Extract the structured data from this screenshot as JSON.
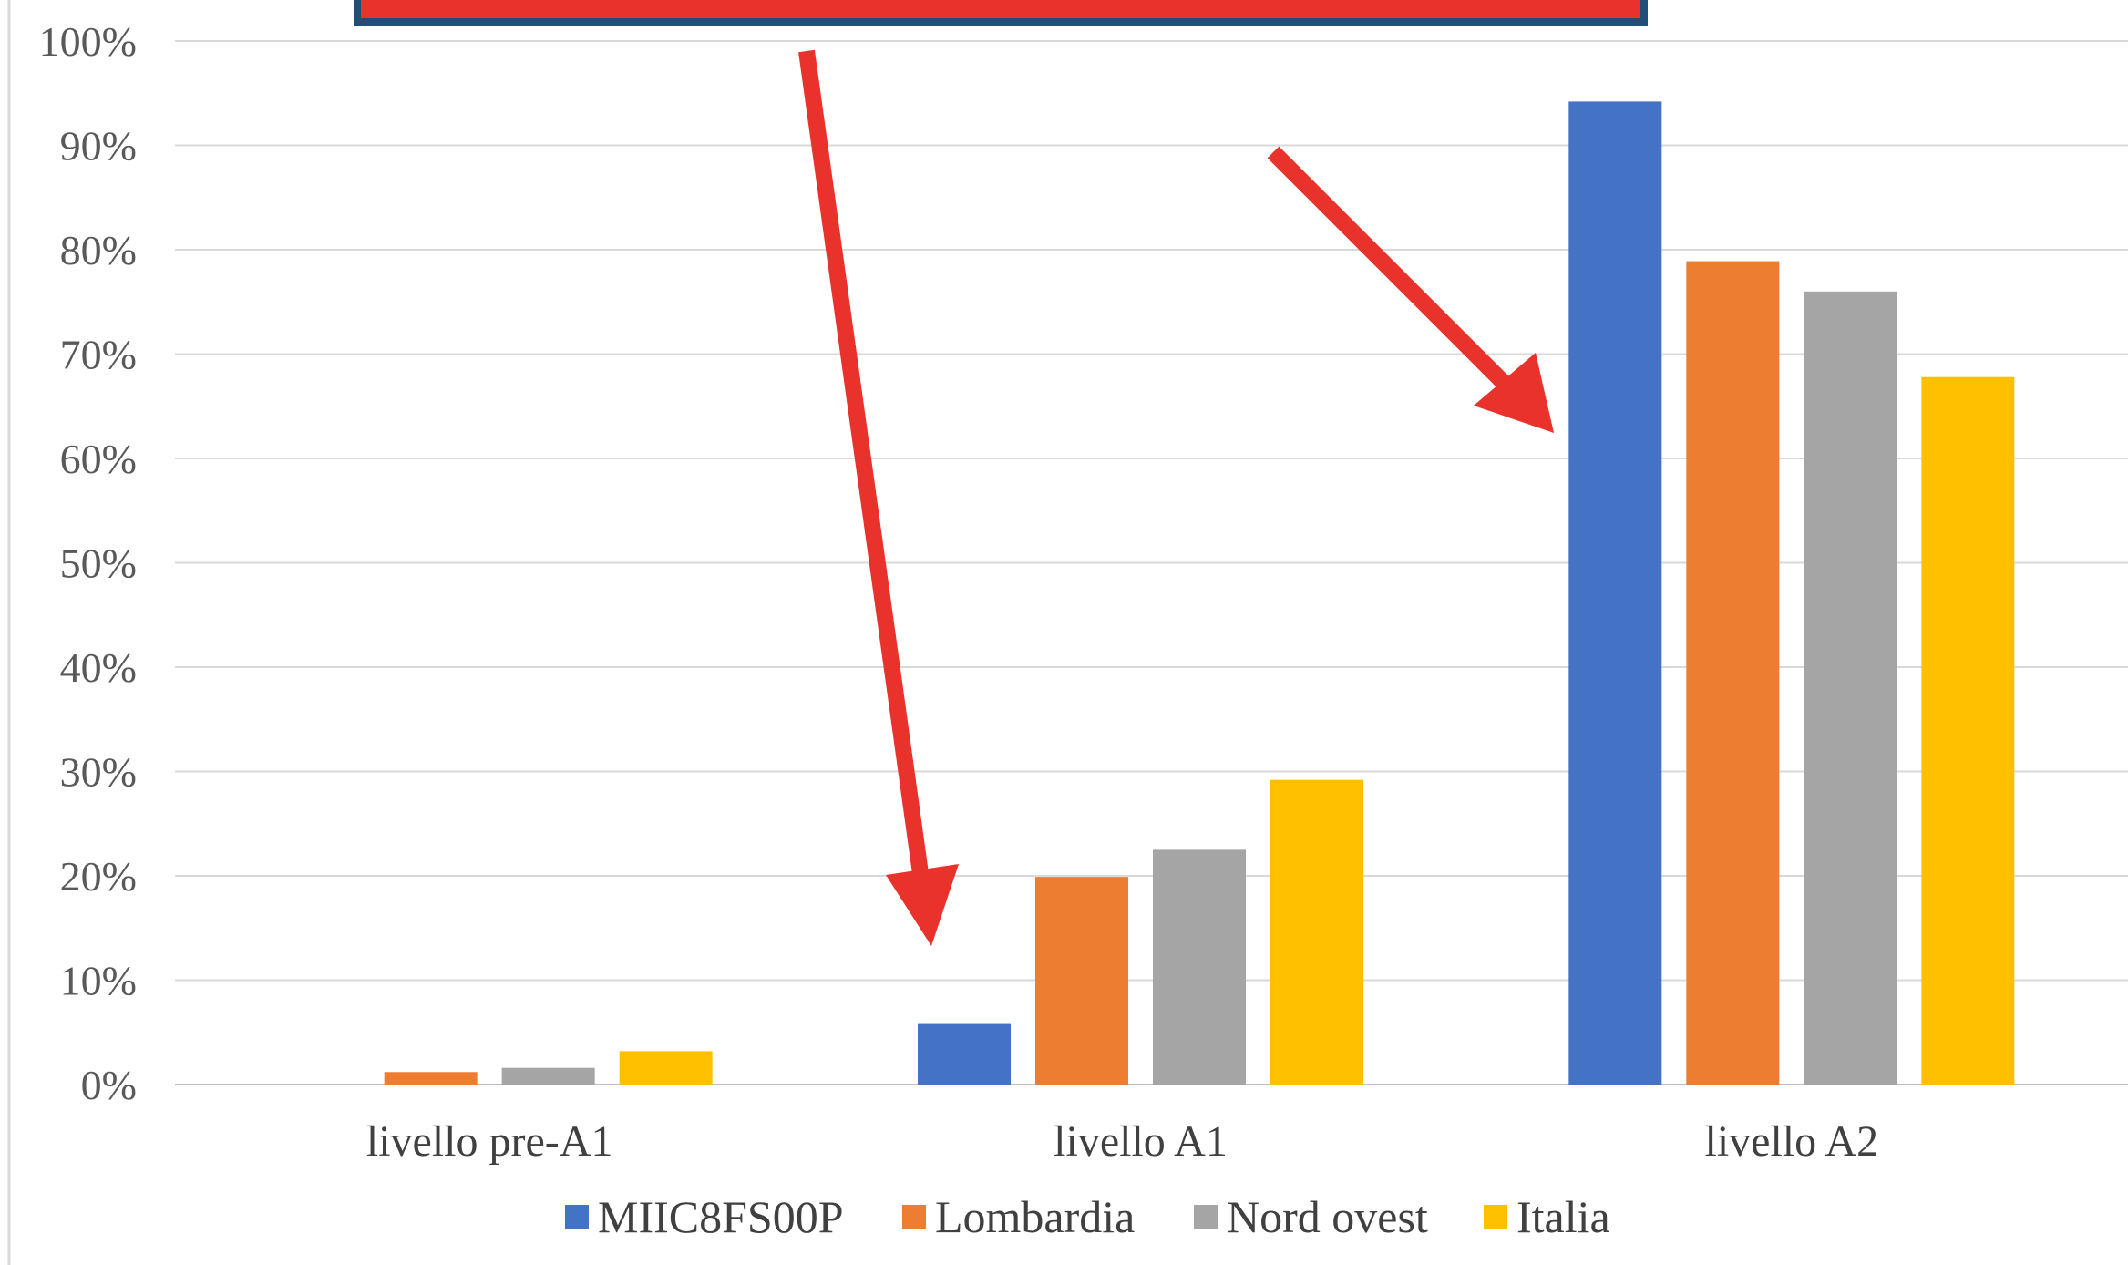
{
  "chart_data": {
    "type": "bar",
    "categories": [
      "livello pre-A1",
      "livello A1",
      "livello A2"
    ],
    "series": [
      {
        "name": "MIIC8FS00P",
        "color": "#4472C4",
        "values": [
          0,
          5.8,
          94.2
        ]
      },
      {
        "name": "Lombardia",
        "color": "#ED7D31",
        "values": [
          1.2,
          19.9,
          78.9
        ]
      },
      {
        "name": "Nord ovest",
        "color": "#A5A5A5",
        "values": [
          1.6,
          22.5,
          76.0
        ]
      },
      {
        "name": "Italia",
        "color": "#FFC000",
        "values": [
          3.2,
          29.2,
          67.8
        ]
      }
    ],
    "yticks": [
      "0%",
      "10%",
      "20%",
      "30%",
      "40%",
      "50%",
      "60%",
      "70%",
      "80%",
      "90%",
      "100%"
    ],
    "ylim": [
      0,
      100
    ],
    "grid": true,
    "legend_position": "bottom"
  },
  "annotations": {
    "banner_fill": "#E8322B",
    "banner_border": "#1F4E79",
    "arrow_color": "#E8322B"
  }
}
